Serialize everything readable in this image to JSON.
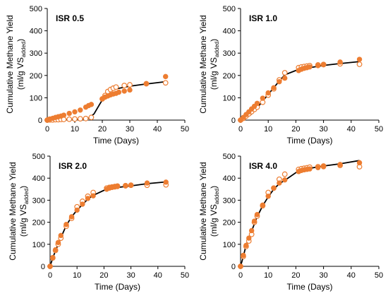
{
  "figure": {
    "ylabel_main": "Cumulative Methane Yield",
    "ylabel_unit_prefix": "(ml/g VS",
    "ylabel_unit_sub": "added",
    "ylabel_unit_suffix": ")"
  },
  "chart_data": [
    {
      "type": "scatter",
      "title": "ISR 0.5",
      "xlabel": "Time (Days)",
      "ylabel": "Cumulative Methane Yield (ml/g VSadded)",
      "xlim": [
        0,
        50
      ],
      "ylim": [
        0,
        500
      ],
      "xticks": [
        0,
        10,
        20,
        30,
        40,
        50
      ],
      "yticks": [
        0,
        100,
        200,
        300,
        400,
        500
      ],
      "grid": false,
      "series": [
        {
          "style": "filled",
          "color": "#ED7D31",
          "x": [
            0,
            0.5,
            1,
            2,
            3,
            4,
            5,
            6,
            8,
            10,
            12,
            14,
            15,
            16,
            20,
            21,
            22,
            23,
            24,
            25,
            26,
            28,
            30,
            36,
            43
          ],
          "y": [
            0,
            3,
            5,
            8,
            12,
            15,
            18,
            22,
            30,
            37,
            45,
            58,
            65,
            70,
            95,
            103,
            108,
            113,
            117,
            120,
            125,
            130,
            135,
            163,
            195
          ]
        },
        {
          "style": "open",
          "color": "#ED7D31",
          "x": [
            0,
            1,
            2,
            3,
            4,
            5,
            6,
            8,
            10,
            12,
            14,
            16,
            20,
            21,
            22,
            23,
            24,
            25,
            28,
            30,
            36,
            43
          ],
          "y": [
            0,
            1,
            1,
            2,
            2,
            3,
            3,
            4,
            5,
            6,
            7,
            12,
            95,
            110,
            128,
            137,
            143,
            148,
            155,
            158,
            163,
            167
          ]
        },
        {
          "style": "line",
          "color": "#000000",
          "x": [
            0,
            5,
            10,
            15,
            17,
            19,
            21,
            22,
            25,
            30,
            35,
            43
          ],
          "y": [
            0,
            1,
            3,
            8,
            28,
            70,
            110,
            125,
            140,
            152,
            160,
            172
          ]
        }
      ]
    },
    {
      "type": "scatter",
      "title": "ISR 1.0",
      "xlabel": "Time (Days)",
      "ylabel": "Cumulative Methane Yield (ml/g VSadded)",
      "xlim": [
        0,
        50
      ],
      "ylim": [
        0,
        500
      ],
      "xticks": [
        0,
        10,
        20,
        30,
        40,
        50
      ],
      "yticks": [
        0,
        100,
        200,
        300,
        400,
        500
      ],
      "grid": false,
      "series": [
        {
          "style": "filled",
          "color": "#ED7D31",
          "x": [
            0,
            1,
            2,
            3,
            4,
            5,
            6,
            8,
            10,
            12,
            14,
            16,
            21,
            22,
            23,
            24,
            25,
            28,
            30,
            36,
            43
          ],
          "y": [
            0,
            12,
            25,
            37,
            50,
            62,
            75,
            98,
            122,
            145,
            172,
            188,
            222,
            228,
            232,
            235,
            238,
            244,
            248,
            260,
            272
          ]
        },
        {
          "style": "open",
          "color": "#ED7D31",
          "x": [
            0,
            1,
            2,
            3,
            4,
            5,
            6,
            8,
            10,
            12,
            14,
            16,
            21,
            22,
            23,
            24,
            25,
            28,
            30,
            36,
            43
          ],
          "y": [
            0,
            8,
            18,
            28,
            38,
            48,
            58,
            80,
            112,
            140,
            180,
            212,
            235,
            238,
            240,
            242,
            244,
            247,
            249,
            252,
            250
          ]
        },
        {
          "style": "line",
          "color": "#000000",
          "x": [
            0,
            2,
            4,
            6,
            8,
            10,
            12,
            14,
            16,
            20,
            25,
            30,
            35,
            43
          ],
          "y": [
            0,
            10,
            28,
            55,
            85,
            115,
            145,
            175,
            203,
            222,
            235,
            245,
            252,
            262
          ]
        }
      ]
    },
    {
      "type": "scatter",
      "title": "ISR 2.0",
      "xlabel": "Time (Days)",
      "ylabel": "Cumulative Methane Yield (ml/g VSadded)",
      "xlim": [
        0,
        50
      ],
      "ylim": [
        0,
        500
      ],
      "xticks": [
        0,
        10,
        20,
        30,
        40,
        50
      ],
      "yticks": [
        0,
        100,
        200,
        300,
        400,
        500
      ],
      "grid": false,
      "series": [
        {
          "style": "filled",
          "color": "#ED7D31",
          "x": [
            0,
            1,
            2,
            3,
            4,
            6,
            8,
            10,
            12,
            14,
            16,
            21,
            22,
            23,
            24,
            25,
            28,
            30,
            36,
            43
          ],
          "y": [
            0,
            40,
            75,
            108,
            140,
            190,
            225,
            255,
            282,
            308,
            320,
            350,
            355,
            358,
            360,
            362,
            365,
            368,
            378,
            382
          ]
        },
        {
          "style": "open",
          "color": "#ED7D31",
          "x": [
            0,
            1,
            2,
            3,
            4,
            6,
            8,
            10,
            12,
            14,
            16,
            21,
            22,
            23,
            24,
            25,
            28,
            30,
            36,
            43
          ],
          "y": [
            0,
            38,
            72,
            100,
            128,
            182,
            218,
            270,
            295,
            318,
            335,
            355,
            358,
            360,
            362,
            364,
            366,
            368,
            368,
            370
          ]
        },
        {
          "style": "line",
          "color": "#000000",
          "x": [
            0,
            1,
            2,
            4,
            6,
            8,
            10,
            12,
            14,
            16,
            20,
            25,
            30,
            36,
            43
          ],
          "y": [
            0,
            38,
            70,
            130,
            185,
            225,
            255,
            280,
            305,
            322,
            345,
            358,
            365,
            375,
            383
          ]
        }
      ]
    },
    {
      "type": "scatter",
      "title": "ISR 4.0",
      "xlabel": "Time (Days)",
      "ylabel": "Cumulative Methane Yield (ml/g VSadded)",
      "xlim": [
        0,
        50
      ],
      "ylim": [
        0,
        500
      ],
      "xticks": [
        0,
        10,
        20,
        30,
        40,
        50
      ],
      "yticks": [
        0,
        100,
        200,
        300,
        400,
        500
      ],
      "grid": false,
      "series": [
        {
          "style": "filled",
          "color": "#ED7D31",
          "x": [
            0,
            1,
            2,
            3,
            4,
            5,
            6,
            8,
            10,
            12,
            14,
            16,
            21,
            22,
            23,
            24,
            25,
            28,
            30,
            36,
            43
          ],
          "y": [
            0,
            50,
            95,
            128,
            162,
            205,
            235,
            278,
            318,
            355,
            378,
            392,
            430,
            435,
            438,
            440,
            442,
            448,
            452,
            462,
            470
          ]
        },
        {
          "style": "open",
          "color": "#ED7D31",
          "x": [
            0,
            1,
            2,
            3,
            4,
            5,
            6,
            8,
            10,
            12,
            14,
            16,
            21,
            22,
            23,
            24,
            25,
            28,
            30,
            36,
            43
          ],
          "y": [
            0,
            45,
            90,
            115,
            145,
            200,
            228,
            275,
            335,
            355,
            395,
            418,
            440,
            443,
            445,
            447,
            450,
            452,
            455,
            458,
            452
          ]
        },
        {
          "style": "line",
          "color": "#000000",
          "x": [
            0,
            1,
            2,
            4,
            6,
            8,
            10,
            12,
            14,
            16,
            20,
            25,
            30,
            36,
            43
          ],
          "y": [
            0,
            45,
            95,
            160,
            225,
            275,
            315,
            350,
            375,
            390,
            425,
            445,
            455,
            465,
            480
          ]
        }
      ]
    }
  ]
}
